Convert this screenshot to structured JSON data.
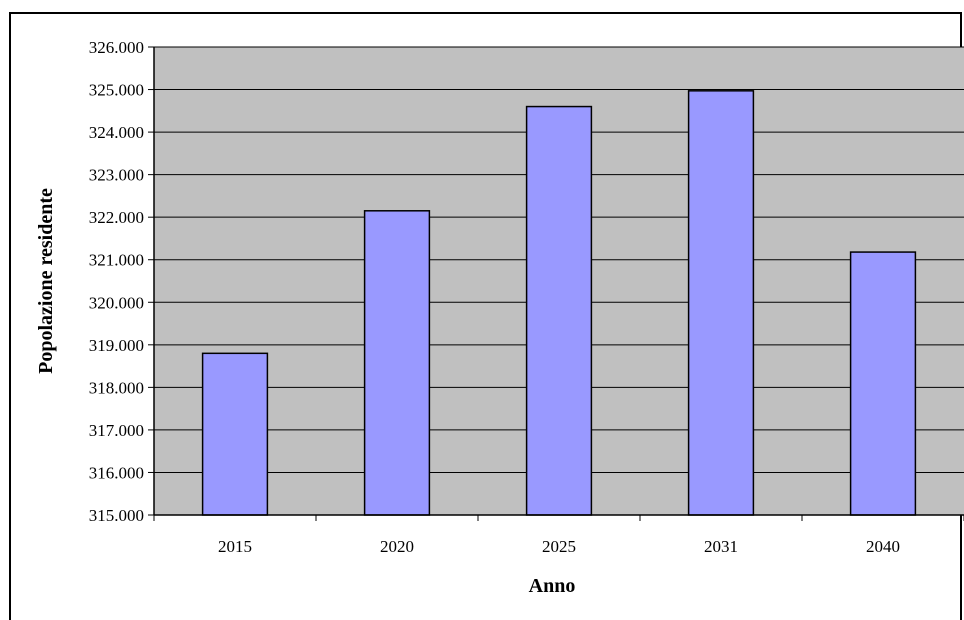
{
  "chart_data": {
    "type": "bar",
    "categories": [
      "2015",
      "2020",
      "2025",
      "2031",
      "2040"
    ],
    "values": [
      318800,
      322150,
      324600,
      324970,
      321180
    ],
    "xlabel": "Anno",
    "ylabel": "Popolazione residente",
    "ylim": [
      315000,
      326000
    ],
    "ytick_step": 1000,
    "ytick_labels": [
      "315.000",
      "316.000",
      "317.000",
      "318.000",
      "319.000",
      "320.000",
      "321.000",
      "322.000",
      "323.000",
      "324.000",
      "325.000",
      "326.000"
    ],
    "grid": true,
    "legend": "none",
    "colors": {
      "bar_fill": "#9999ff",
      "bar_stroke": "#000000",
      "plot_background": "#c0c0c0",
      "gridline": "#000000"
    }
  }
}
